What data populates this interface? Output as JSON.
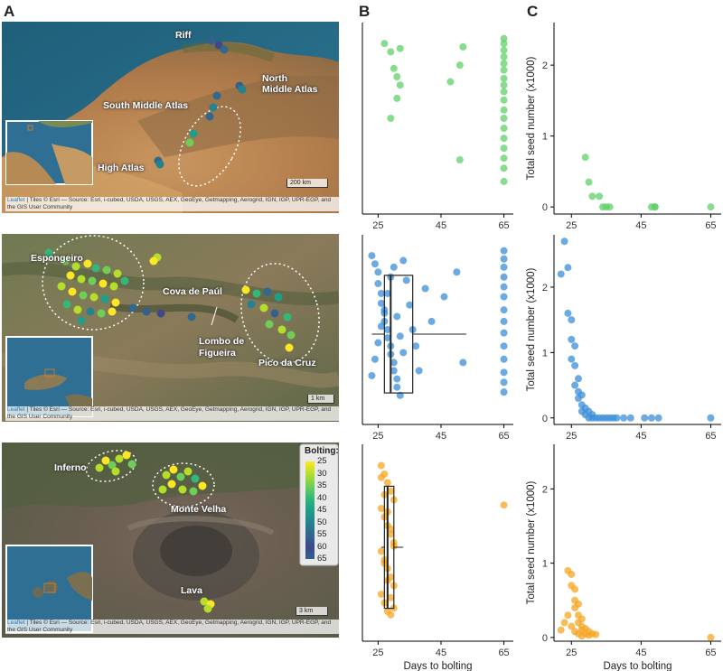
{
  "panels": {
    "a": "A",
    "b": "B",
    "c": "C"
  },
  "attribution": {
    "leaflet": "Leaflet",
    "text": " | Tiles © Esri — Source: Esri, i-cubed, USDA, USGS, AEX, GeoEye, Getmapping, Aerogrid, IGN, IGP, UPR-EGP, and the GIS User Community"
  },
  "maps": [
    {
      "labels": [
        "Riff",
        "North",
        "Middle Atlas",
        "South Middle Atlas",
        "High Atlas"
      ],
      "scale": "200 km"
    },
    {
      "labels": [
        "Espongeiro",
        "Cova de Paúl",
        "Lombo de",
        "Figueira",
        "Pico da Cruz"
      ],
      "scale": "1 km"
    },
    {
      "labels": [
        "Inferno",
        "Monte Velha",
        "Lava"
      ],
      "scale": "3 km"
    }
  ],
  "legend": {
    "title": "Bolting:",
    "ticks": [
      "25",
      "30",
      "35",
      "40",
      "45",
      "50",
      "55",
      "60",
      "65"
    ],
    "colors": [
      "#fde725",
      "#b5de2b",
      "#6ece58",
      "#35b779",
      "#1f9e89",
      "#26828e",
      "#31688e",
      "#3e4989",
      "#355f8d"
    ]
  },
  "colors": {
    "morocco": "#5fd068",
    "santo_antao": "#3b8ed8",
    "fogo": "#f5a623"
  },
  "chart_data": [
    {
      "type": "scatter",
      "panel": "B-top",
      "xlabel": "",
      "ylabel": "",
      "xlim": [
        20,
        68
      ],
      "xticks": [
        "25",
        "45",
        "65"
      ],
      "x": [
        27,
        29,
        32,
        30,
        31,
        32,
        31,
        29,
        48,
        51,
        52,
        51,
        65,
        65,
        65,
        65,
        65,
        65,
        65,
        65,
        65,
        65,
        65,
        65,
        65,
        65,
        65,
        65,
        65,
        65
      ],
      "y": [
        0.95,
        0.9,
        0.92,
        0.8,
        0.75,
        0.7,
        0.62,
        0.5,
        0.72,
        0.82,
        0.93,
        0.25,
        0.98,
        0.95,
        0.91,
        0.87,
        0.83,
        0.79,
        0.74,
        0.7,
        0.66,
        0.61,
        0.55,
        0.5,
        0.44,
        0.38,
        0.32,
        0.26,
        0.2,
        0.12
      ]
    },
    {
      "type": "scatter",
      "panel": "B-middle",
      "xlabel": "",
      "ylabel": "",
      "xlim": [
        20,
        68
      ],
      "xticks": [
        "25",
        "45",
        "65"
      ],
      "x": [
        23,
        24,
        25,
        25,
        26,
        26,
        27,
        27,
        28,
        28,
        29,
        29,
        30,
        30,
        31,
        31,
        32,
        33,
        34,
        35,
        36,
        37,
        38,
        40,
        42,
        46,
        50,
        52,
        23,
        24,
        25,
        26,
        27,
        28,
        29,
        30,
        31,
        32,
        33,
        65,
        65,
        65,
        65,
        65,
        65,
        65,
        65,
        65,
        65,
        65,
        65,
        65,
        65
      ],
      "y": [
        0.95,
        0.9,
        0.85,
        0.78,
        0.72,
        0.66,
        0.6,
        0.55,
        0.5,
        0.45,
        0.4,
        0.35,
        0.3,
        0.25,
        0.2,
        0.15,
        0.1,
        0.92,
        0.8,
        0.65,
        0.5,
        0.4,
        0.25,
        0.75,
        0.55,
        0.7,
        0.85,
        0.3,
        0.22,
        0.32,
        0.42,
        0.52,
        0.62,
        0.72,
        0.82,
        0.88,
        0.58,
        0.46,
        0.36,
        0.98,
        0.93,
        0.88,
        0.82,
        0.76,
        0.7,
        0.62,
        0.55,
        0.48,
        0.4,
        0.32,
        0.24,
        0.18,
        0.12
      ],
      "box": {
        "q1": 27,
        "median": 29,
        "q3": 36,
        "whisker_low": 23,
        "whisker_high": 53
      }
    },
    {
      "type": "scatter",
      "panel": "B-bottom",
      "xlabel": "Days to bolting",
      "ylabel": "",
      "xlim": [
        20,
        68
      ],
      "xticks": [
        "25",
        "45",
        "65"
      ],
      "x": [
        26,
        27,
        28,
        29,
        30,
        26,
        27,
        28,
        29,
        30,
        26,
        27,
        28,
        29,
        30,
        26,
        27,
        28,
        29,
        30,
        26,
        27,
        28,
        29,
        30,
        27,
        28,
        29,
        65
      ],
      "y": [
        0.95,
        0.9,
        0.85,
        0.8,
        0.75,
        0.7,
        0.65,
        0.6,
        0.55,
        0.5,
        0.45,
        0.4,
        0.35,
        0.3,
        0.25,
        0.2,
        0.15,
        0.1,
        0.08,
        0.12,
        0.88,
        0.78,
        0.68,
        0.58,
        0.48,
        0.38,
        0.28,
        0.18,
        0.72
      ],
      "box": {
        "q1": 27,
        "median": 28,
        "q3": 30,
        "whisker_low": 26,
        "whisker_high": 33
      }
    },
    {
      "type": "scatter",
      "panel": "C-top",
      "xlabel": "",
      "ylabel": "Total seed number (x1000)",
      "xlim": [
        20,
        68
      ],
      "ylim": [
        -0.1,
        2.6
      ],
      "xticks": [
        "25",
        "45",
        "65"
      ],
      "yticks": [
        "0",
        "1",
        "2"
      ],
      "x": [
        29,
        30,
        31,
        33,
        34,
        35,
        36,
        48,
        49,
        49,
        65
      ],
      "y": [
        0.7,
        0.35,
        0.15,
        0.15,
        0.0,
        0.0,
        0.0,
        0.0,
        0.0,
        0.0,
        0.0
      ]
    },
    {
      "type": "scatter",
      "panel": "C-middle",
      "xlabel": "",
      "ylabel": "Total seed number (x1000)",
      "xlim": [
        20,
        68
      ],
      "ylim": [
        -0.1,
        2.8
      ],
      "xticks": [
        "25",
        "45",
        "65"
      ],
      "yticks": [
        "0",
        "1",
        "2"
      ],
      "x": [
        22,
        23,
        24,
        24,
        25,
        25,
        25,
        26,
        26,
        26,
        27,
        27,
        27,
        28,
        28,
        28,
        29,
        29,
        30,
        30,
        31,
        31,
        32,
        33,
        34,
        35,
        36,
        37,
        38,
        40,
        42,
        46,
        48,
        50,
        65
      ],
      "y": [
        2.2,
        2.7,
        2.3,
        1.6,
        1.5,
        1.2,
        0.9,
        1.1,
        0.8,
        0.5,
        0.6,
        0.4,
        0.3,
        0.35,
        0.2,
        0.1,
        0.15,
        0.05,
        0.1,
        0.0,
        0.05,
        0.0,
        0.0,
        0.0,
        0.0,
        0.0,
        0.0,
        0.0,
        0.0,
        0.0,
        0.0,
        0.0,
        0.0,
        0.0,
        0.0
      ]
    },
    {
      "type": "scatter",
      "panel": "C-bottom",
      "xlabel": "Days to bolting",
      "ylabel": "Total seed number (x1000)",
      "xlim": [
        20,
        68
      ],
      "ylim": [
        -0.05,
        2.6
      ],
      "xticks": [
        "25",
        "45",
        "65"
      ],
      "yticks": [
        "0",
        "1",
        "2"
      ],
      "x": [
        24,
        25,
        25,
        26,
        26,
        26,
        27,
        27,
        27,
        28,
        28,
        28,
        29,
        29,
        30,
        30,
        31,
        32,
        22,
        23,
        24,
        25,
        26,
        27,
        28,
        65
      ],
      "y": [
        0.9,
        0.85,
        0.7,
        0.65,
        0.5,
        0.4,
        0.45,
        0.3,
        0.2,
        0.25,
        0.15,
        0.1,
        0.12,
        0.05,
        0.08,
        0.03,
        0.05,
        0.04,
        0.1,
        0.2,
        0.3,
        0.15,
        0.08,
        0.05,
        0.02,
        0.0
      ]
    }
  ]
}
